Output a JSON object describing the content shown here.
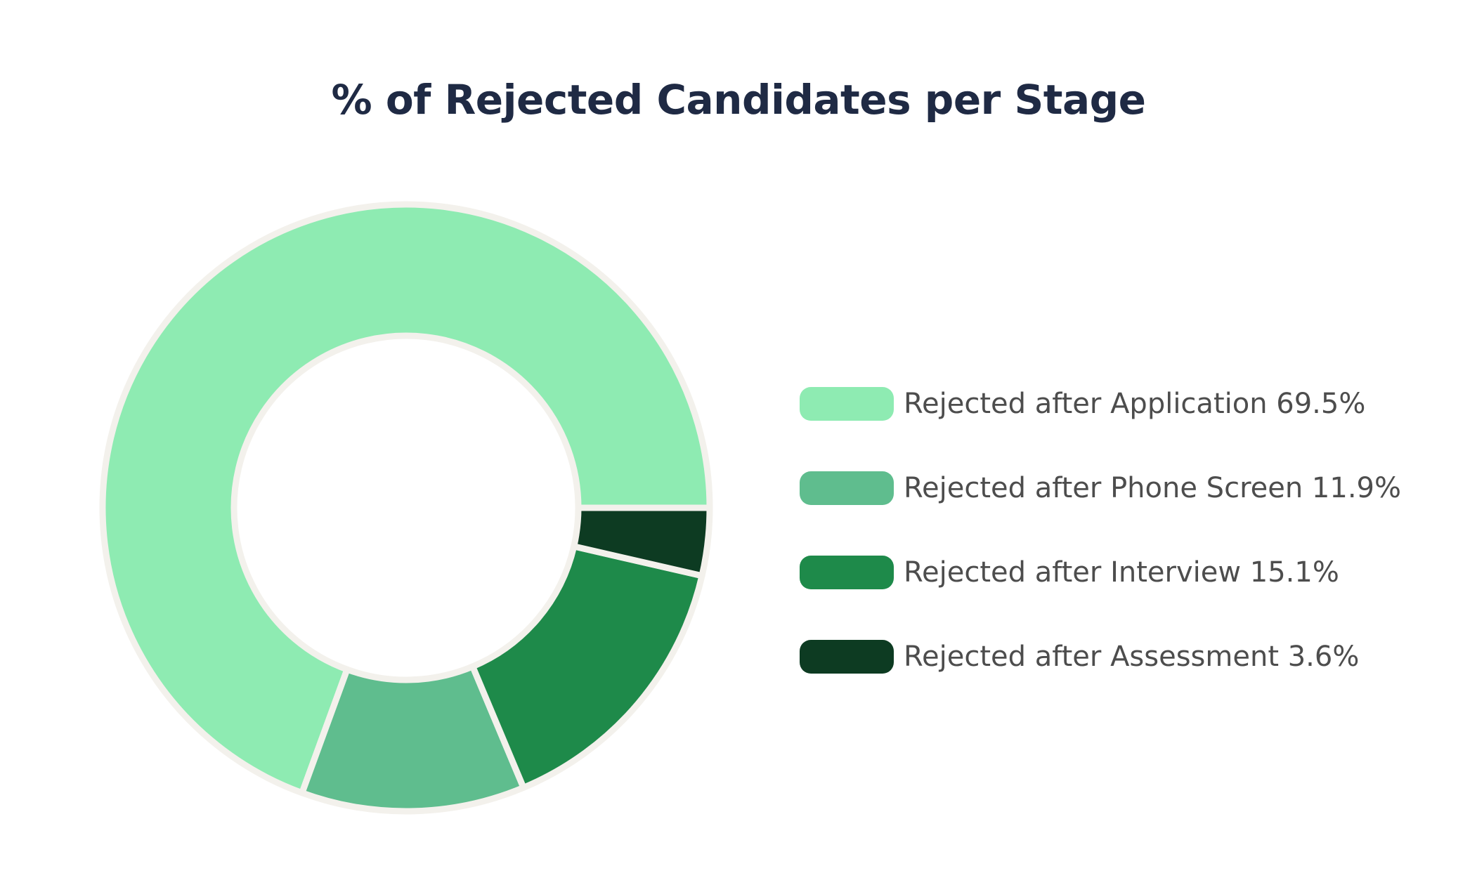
{
  "chart_data": {
    "type": "pie",
    "title": "% of Rejected Candidates per Stage",
    "categories": [
      "Rejected after Application",
      "Rejected after Phone Screen",
      "Rejected after Interview",
      "Rejected after Assessment"
    ],
    "values": [
      69.5,
      11.9,
      15.1,
      3.6
    ],
    "value_labels": [
      "69.5%",
      "11.9%",
      "15.1%",
      "3.6%"
    ],
    "colors": [
      "#8eebb2",
      "#5fbd8e",
      "#1e8a4a",
      "#0d3b22"
    ],
    "donut": true,
    "legend": "right",
    "legend_items": [
      {
        "label": "Rejected after Application 69.5%",
        "color": "#8eebb2"
      },
      {
        "label": "Rejected after Phone Screen 11.9%",
        "color": "#5fbd8e"
      },
      {
        "label": "Rejected after Interview 15.1%",
        "color": "#1e8a4a"
      },
      {
        "label": "Rejected after Assessment 3.6%",
        "color": "#0d3b22"
      }
    ]
  }
}
